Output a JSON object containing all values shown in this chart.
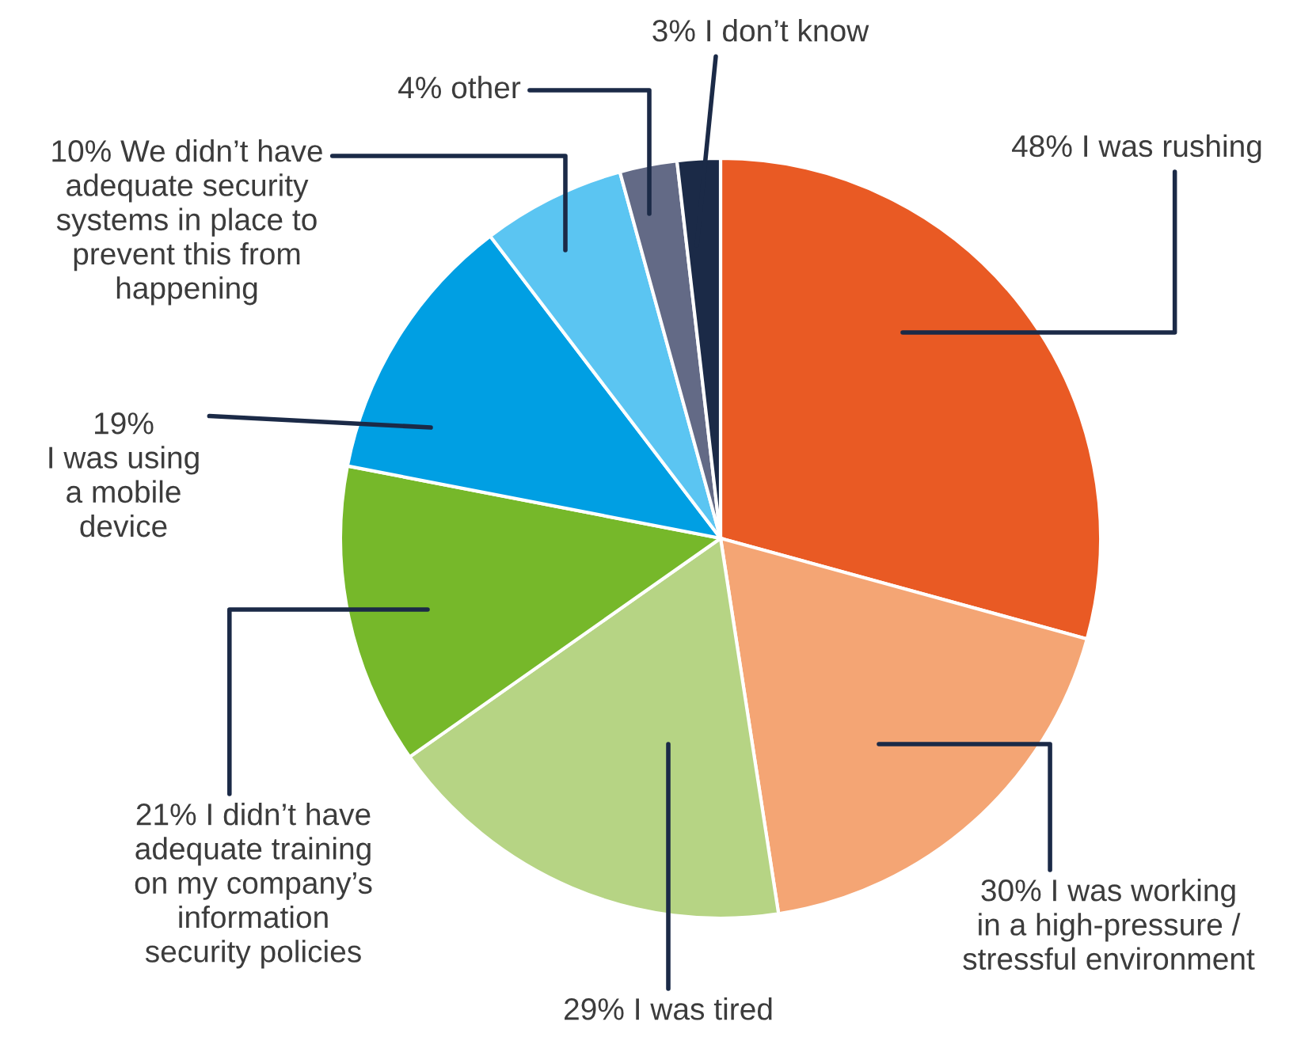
{
  "chart_data": {
    "type": "pie",
    "categories": [
      "48% I was rushing",
      "30% I was working\nin a high-pressure /\nstressful environment",
      "29% I was tired",
      "21% I didn’t have\nadequate training\non my company’s\ninformation\nsecurity policies",
      "19%\nI was using\na mobile\ndevice",
      "10% We didn’t have\nadequate security\nsystems in place to\nprevent this from\nhappening",
      "4% other",
      "3% I don’t know"
    ],
    "values": [
      48,
      30,
      29,
      21,
      19,
      10,
      4,
      3
    ],
    "colors": [
      "#e95a24",
      "#f4a574",
      "#b6d484",
      "#76b82a",
      "#009fe3",
      "#5bc5f2",
      "#636a86",
      "#1b2a47"
    ],
    "legend": false
  }
}
